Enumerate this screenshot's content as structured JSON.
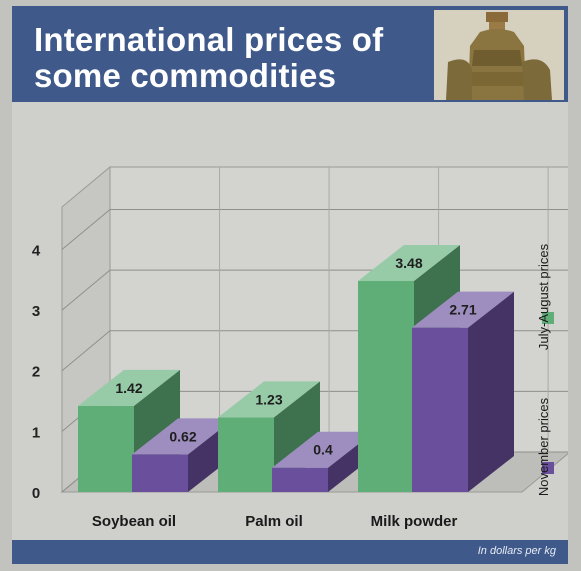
{
  "header": {
    "title_line1": "International prices of",
    "title_line2": "some commodities"
  },
  "footer": {
    "note": "In dollars per kg"
  },
  "colors": {
    "july_august": "#5fae78",
    "november": "#6a4f9c",
    "header_bg": "#3f5a8a"
  },
  "chart_data": {
    "type": "bar",
    "categories": [
      "Soybean oil",
      "Palm oil",
      "Milk powder"
    ],
    "series": [
      {
        "name": "July-August prices",
        "values": [
          1.42,
          1.23,
          3.48
        ],
        "labels": [
          "1.42",
          "1.23",
          "3.48"
        ]
      },
      {
        "name": "November prices",
        "values": [
          0.62,
          0.4,
          2.71
        ],
        "labels": [
          "0.62",
          "0.4",
          "2.71"
        ]
      }
    ],
    "y_ticks": [
      "0",
      "1",
      "2",
      "3",
      "4"
    ],
    "ylim": [
      0,
      4.7
    ],
    "grid": true,
    "legend_position": "right",
    "unit_note": "In dollars per kg"
  }
}
